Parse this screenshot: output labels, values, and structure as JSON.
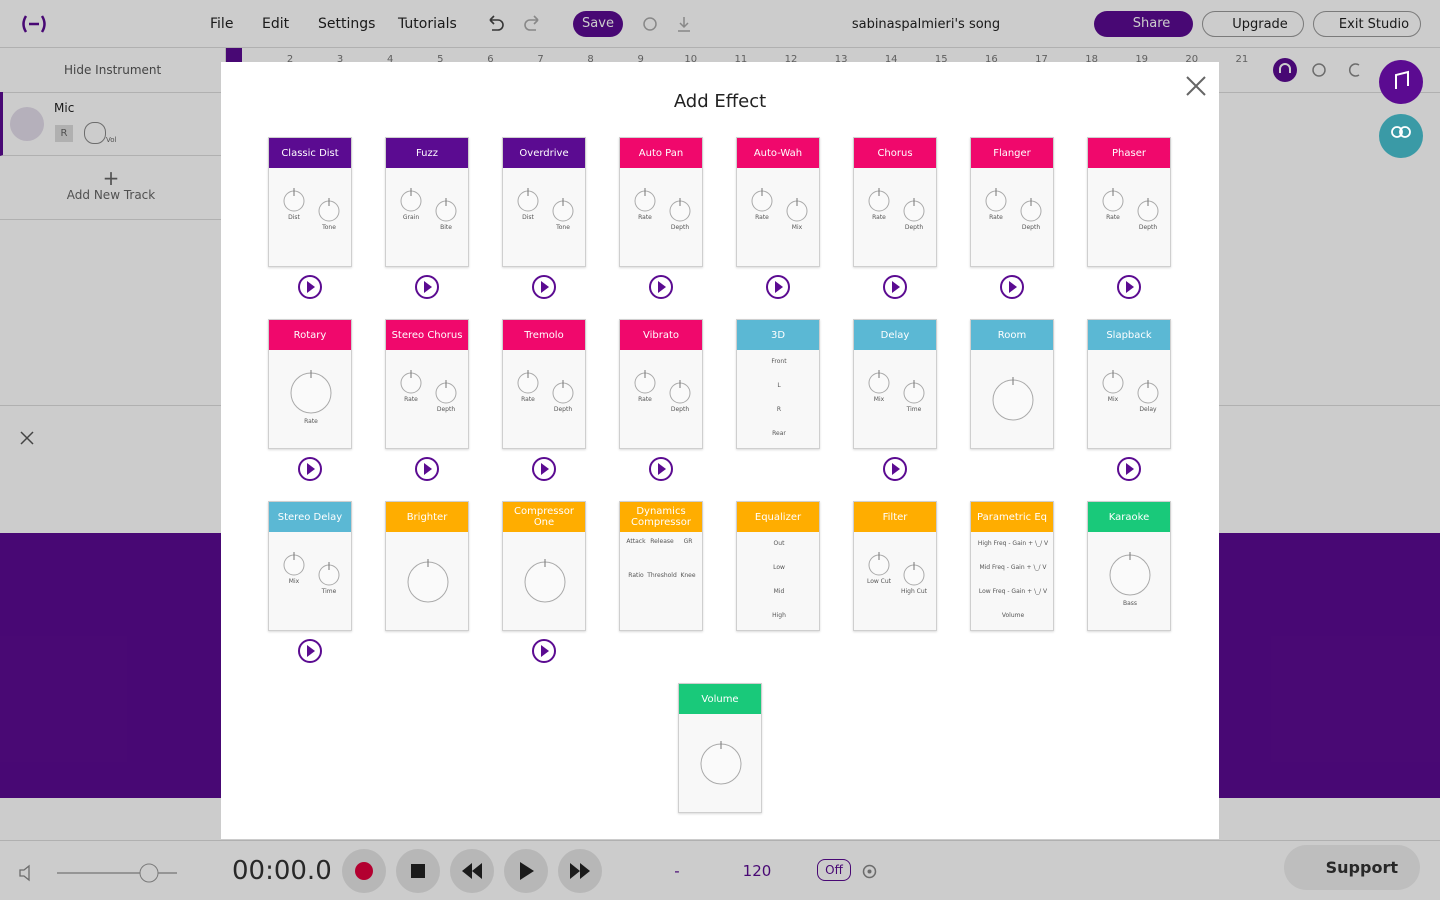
{
  "header": {
    "menu": [
      "File",
      "Edit",
      "Settings",
      "Tutorials"
    ],
    "save": "Save",
    "song_title": "sabinaspalmieri's song",
    "share": "Share",
    "upgrade": "Upgrade",
    "exit": "Exit Studio"
  },
  "ruler": [
    2,
    3,
    4,
    5,
    6,
    7,
    8,
    9,
    10,
    11,
    12,
    13,
    14,
    15,
    16,
    17,
    18,
    19,
    20,
    21
  ],
  "track_panel": {
    "hide_instrument": "Hide Instrument",
    "track_name": "Mic",
    "record": "R",
    "volume": "Vol",
    "add_track": "Add New Track"
  },
  "transport": {
    "time": "00:00.0",
    "key": "-",
    "tempo": "120",
    "metronome": "Off",
    "support": "Support"
  },
  "modal": {
    "title": "Add Effect",
    "effects": [
      {
        "name": "Classic Dist",
        "color": "#5b0b91",
        "knobs": [
          "Dist",
          "Tone"
        ],
        "playable": true
      },
      {
        "name": "Fuzz",
        "color": "#5b0b91",
        "knobs": [
          "Grain",
          "Bite"
        ],
        "playable": true
      },
      {
        "name": "Overdrive",
        "color": "#5b0b91",
        "knobs": [
          "Dist",
          "Tone"
        ],
        "playable": true
      },
      {
        "name": "Auto Pan",
        "color": "#f0086c",
        "knobs": [
          "Rate",
          "Depth"
        ],
        "playable": true
      },
      {
        "name": "Auto-Wah",
        "color": "#f0086c",
        "knobs": [
          "Rate",
          "Mix"
        ],
        "playable": true
      },
      {
        "name": "Chorus",
        "color": "#f0086c",
        "knobs": [
          "Rate",
          "Depth"
        ],
        "playable": true
      },
      {
        "name": "Flanger",
        "color": "#f0086c",
        "knobs": [
          "Rate",
          "Depth"
        ],
        "playable": true
      },
      {
        "name": "Phaser",
        "color": "#f0086c",
        "knobs": [
          "Rate",
          "Depth"
        ],
        "playable": true
      },
      {
        "name": "Rotary",
        "color": "#f0086c",
        "knobs": [
          "Rate"
        ],
        "playable": true
      },
      {
        "name": "Stereo Chorus",
        "color": "#f0086c",
        "knobs": [
          "Rate",
          "Depth"
        ],
        "playable": true
      },
      {
        "name": "Tremolo",
        "color": "#f0086c",
        "knobs": [
          "Rate",
          "Depth"
        ],
        "playable": true
      },
      {
        "name": "Vibrato",
        "color": "#f0086c",
        "knobs": [
          "Rate",
          "Depth"
        ],
        "playable": true
      },
      {
        "name": "3D",
        "color": "#5bb8d4",
        "knobs": [
          "Front",
          "L",
          "R",
          "Rear"
        ],
        "playable": false
      },
      {
        "name": "Delay",
        "color": "#5bb8d4",
        "knobs": [
          "Mix",
          "Time"
        ],
        "playable": true
      },
      {
        "name": "Room",
        "color": "#5bb8d4",
        "knobs": [],
        "playable": false
      },
      {
        "name": "Slapback",
        "color": "#5bb8d4",
        "knobs": [
          "Mix",
          "Delay"
        ],
        "playable": true
      },
      {
        "name": "Stereo Delay",
        "color": "#5bb8d4",
        "knobs": [
          "Mix",
          "Time"
        ],
        "playable": true
      },
      {
        "name": "Brighter",
        "color": "#ffad00",
        "knobs": [],
        "playable": false
      },
      {
        "name": "Compressor One",
        "color": "#ffad00",
        "knobs": [],
        "playable": true
      },
      {
        "name": "Dynamics Compressor",
        "color": "#ffad00",
        "knobs": [
          "Attack",
          "Release",
          "GR",
          "Ratio",
          "Threshold",
          "Knee"
        ],
        "playable": false
      },
      {
        "name": "Equalizer",
        "color": "#ffad00",
        "knobs": [
          "Out",
          "Low",
          "Mid",
          "High"
        ],
        "playable": false
      },
      {
        "name": "Filter",
        "color": "#ffad00",
        "knobs": [
          "Low Cut",
          "High Cut"
        ],
        "playable": false
      },
      {
        "name": "Parametric Eq",
        "color": "#ffad00",
        "knobs": [
          "High Freq - Gain + \\_/ V",
          "Mid Freq - Gain + \\_/ V",
          "Low Freq - Gain + \\_/ V",
          "Volume"
        ],
        "playable": false
      },
      {
        "name": "Karaoke",
        "color": "#19c97a",
        "knobs": [
          "Bass"
        ],
        "playable": false
      },
      {
        "name": "Volume",
        "color": "#19c97a",
        "knobs": [],
        "playable": false
      }
    ]
  }
}
